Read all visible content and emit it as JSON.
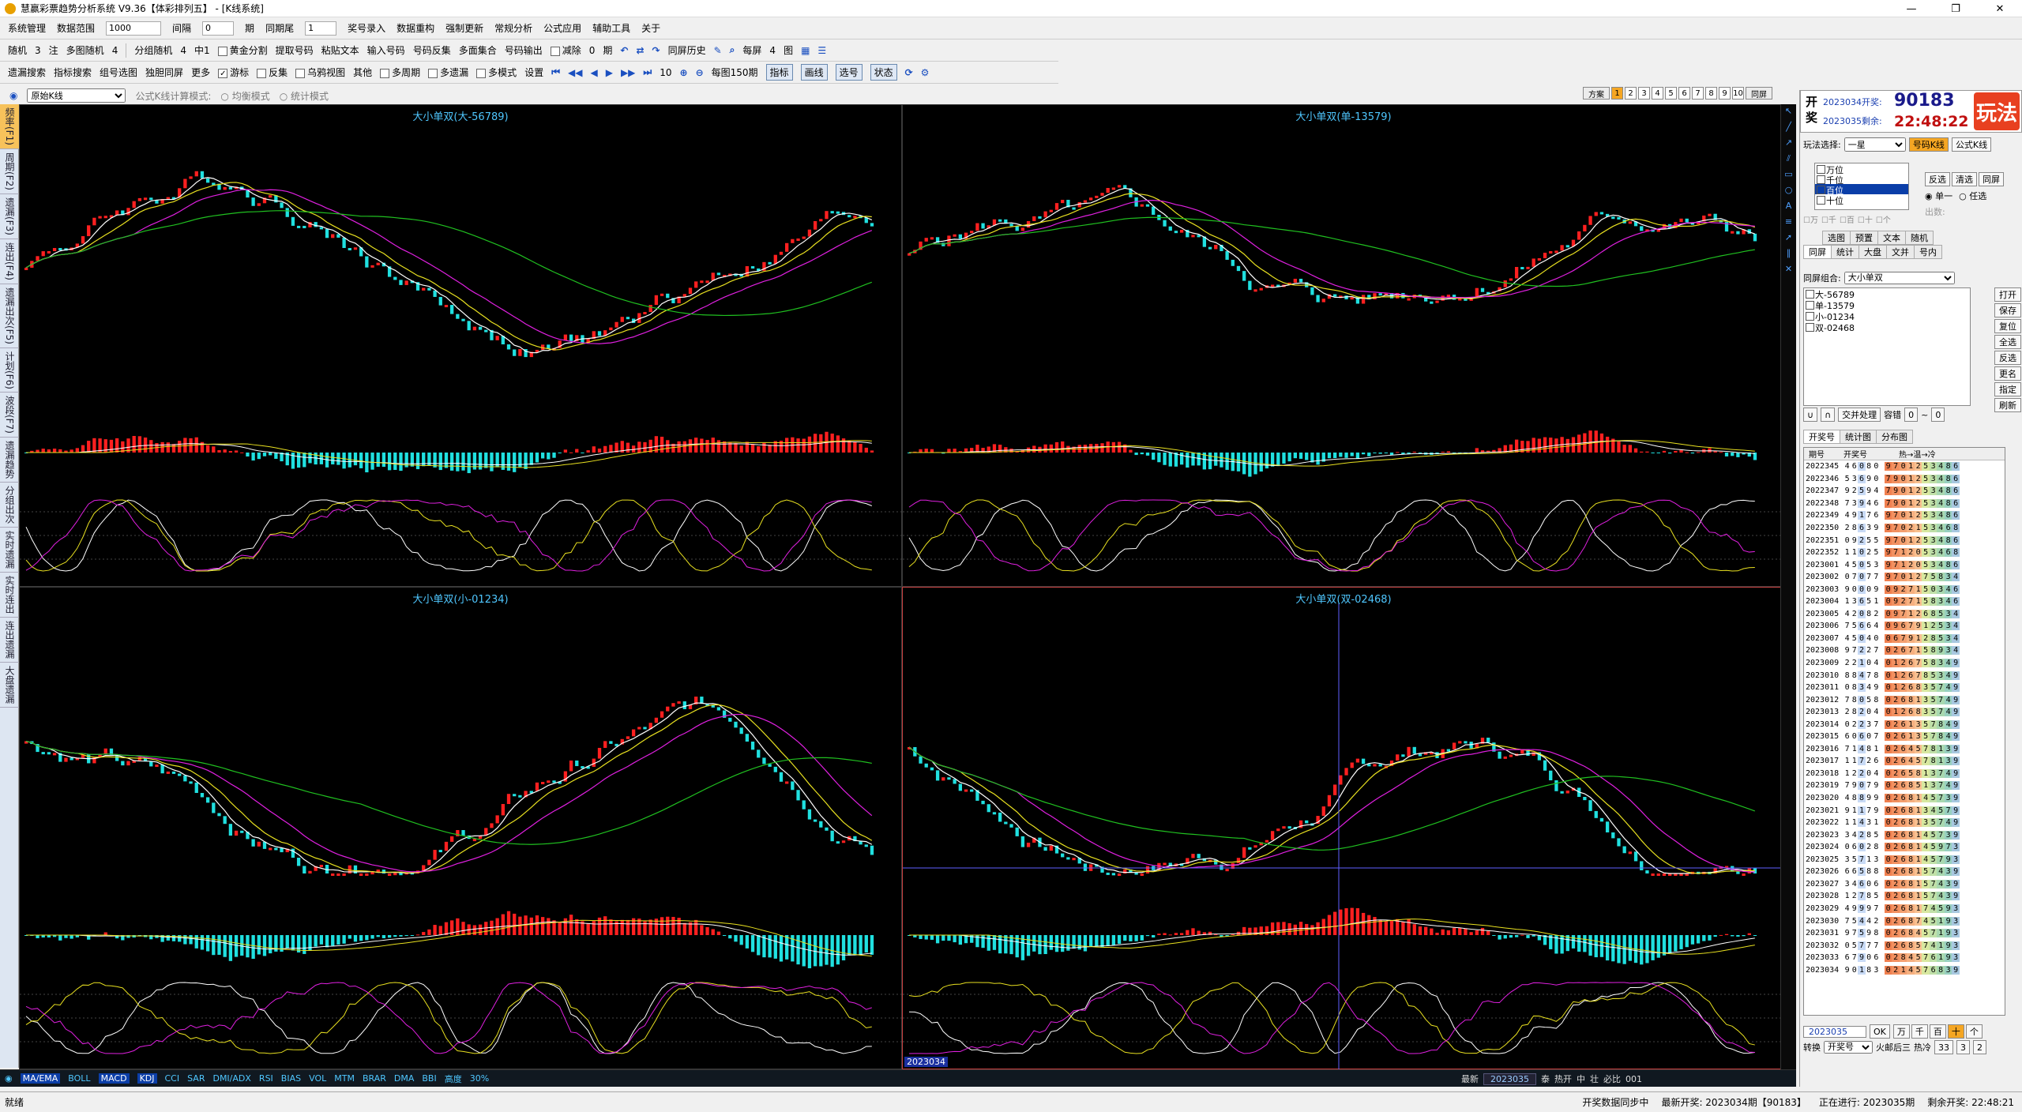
{
  "window": {
    "title": "慧赢彩票趋势分析系统 V9.36【体彩排列五】 - [K线系统]",
    "controls": [
      "—",
      "❐",
      "✕"
    ]
  },
  "menubar": {
    "items": [
      "系统管理",
      "数据范围",
      "期",
      "同期尾",
      "奖号录入",
      "数据重构",
      "强制更新",
      "常规分析",
      "公式应用",
      "辅助工具",
      "关于"
    ],
    "data_range": "1000",
    "jiange_label": "间隔",
    "jiange": "0",
    "same_tail": "1"
  },
  "toolbar1": {
    "items": [
      "随机",
      "3",
      "注",
      "多图随机",
      "4",
      "黄金分割",
      "提取号码",
      "粘贴文本",
      "输入号码",
      "号码反集",
      "多面集合",
      "号码输出",
      "减除",
      "0",
      "期",
      "同屏历史",
      "每屏",
      "4",
      "图"
    ],
    "fenzu": "分组随机",
    "fenzu_val": "4",
    "zhong": "中1"
  },
  "toolbar2": {
    "items": [
      "遗漏搜索",
      "指标搜索",
      "组号选图",
      "独胆同屏",
      "更多",
      "游标",
      "反集",
      "乌鸦视图",
      "其他",
      "多周期",
      "多遗漏",
      "多模式",
      "设置"
    ],
    "per_screen": "10",
    "per_screen_label": "每图150期",
    "tools": [
      "指标",
      "画线",
      "选号",
      "状态"
    ]
  },
  "subbar": {
    "view_mode": "原始K线",
    "calc_label": "公式K线计算模式:",
    "mode1": "均衡模式",
    "mode2": "统计模式",
    "scheme_label": "方案",
    "schemes": [
      "1",
      "2",
      "3",
      "4",
      "5",
      "6",
      "7",
      "8",
      "9",
      "10"
    ],
    "same_screen": "同屏"
  },
  "left_tabs": [
    "频率(F1)",
    "周期(F2)",
    "遗漏(F3)",
    "连出(F4)",
    "遗漏出次(F5)",
    "计划(F6)",
    "波段(F7)",
    "遗漏趋势",
    "分组出次",
    "实时遗漏",
    "实时连出",
    "连出遗漏",
    "大盘遗漏"
  ],
  "panes": [
    {
      "title": "大小单双(大-56789)",
      "seed": 1
    },
    {
      "title": "大小单双(单-13579)",
      "seed": 2
    },
    {
      "title": "大小单双(小-01234)",
      "seed": 3
    },
    {
      "title": "大小单双(双-02468)",
      "seed": 4
    }
  ],
  "cursor_label": "2023034",
  "bottom_indicators": [
    "MA/EMA",
    "BOLL",
    "MACD",
    "KDJ",
    "CCI",
    "SAR",
    "DMI/ADX",
    "RSI",
    "BIAS",
    "VOL",
    "MTM",
    "BRAR",
    "DMA",
    "BBI",
    "高度",
    "30%"
  ],
  "bottom_right": {
    "latest_label": "最新",
    "issue": "2023035",
    "tai": "泰",
    "hot": "热开",
    "mid": "中",
    "zhuang": "壮",
    "bianliao": "必比",
    "val": "001"
  },
  "status": {
    "left": "就绪",
    "sync": "开奖数据同步中",
    "latest": "最新开奖: 2023034期【90183】",
    "current": "正在进行: 2023035期",
    "remain": "剩余开奖: 22:48:21"
  },
  "right_panel": {
    "kai": "开",
    "jiang": "奖",
    "open_issue": "2023034开奖:",
    "open_num": "90183",
    "remain_issue": "2023035剩余:",
    "remain_time": "22:48:22",
    "play_btn": "玩法",
    "play_label": "玩法选择:",
    "play_val": "一星",
    "btn_haoma": "号码K线",
    "btn_gongshi": "公式K线",
    "positions": [
      "万位",
      "千位",
      "百位",
      "十位"
    ],
    "btns": [
      "反选",
      "清选",
      "同屏"
    ],
    "dan": "单一",
    "renxuan": "任选",
    "small": [
      "万",
      "千",
      "百",
      "十",
      "个"
    ],
    "chu": "出数:",
    "tabs_row1": [
      "选图",
      "预置",
      "文本",
      "随机"
    ],
    "tabs_row2": [
      "同屏",
      "统计",
      "大盘",
      "文并",
      "号内"
    ],
    "combo_label": "同屏组合:",
    "combo_val": "大小单双",
    "combo_items": [
      "大-56789",
      "单-13579",
      "小-01234",
      "双-02468"
    ],
    "side_btns": [
      "打开",
      "保存",
      "复位",
      "全选",
      "反选",
      "更名",
      "指定",
      "刷新"
    ],
    "ops": [
      "∪",
      "∩",
      "交并处理",
      "容错",
      "0",
      "~",
      "0"
    ],
    "hist_tabs": [
      "开奖号",
      "统计图",
      "分布图"
    ],
    "hist_head": [
      "期号",
      "开奖号",
      "热→温→冷"
    ],
    "history": [
      [
        "2022345",
        "46080",
        "9701253486"
      ],
      [
        "2022346",
        "53690",
        "7901253486"
      ],
      [
        "2022347",
        "92594",
        "7901253486"
      ],
      [
        "2022348",
        "73946",
        "7901253486"
      ],
      [
        "2022349",
        "49176",
        "9701253486"
      ],
      [
        "2022350",
        "28639",
        "9702153468"
      ],
      [
        "2022351",
        "09255",
        "9701253486"
      ],
      [
        "2022352",
        "11025",
        "9712053468"
      ],
      [
        "2023001",
        "45053",
        "9712053486"
      ],
      [
        "2023002",
        "07077",
        "9701275834"
      ],
      [
        "2023003",
        "90009",
        "0927150346"
      ],
      [
        "2023004",
        "13651",
        "0927158346"
      ],
      [
        "2023005",
        "42082",
        "0971268534"
      ],
      [
        "2023006",
        "75664",
        "0967912534"
      ],
      [
        "2023007",
        "45040",
        "0679128534"
      ],
      [
        "2023008",
        "97227",
        "0267158934"
      ],
      [
        "2023009",
        "22104",
        "0126758349"
      ],
      [
        "2023010",
        "88478",
        "0126785349"
      ],
      [
        "2023011",
        "08349",
        "0126835749"
      ],
      [
        "2023012",
        "78058",
        "0268135749"
      ],
      [
        "2023013",
        "28204",
        "0126835749"
      ],
      [
        "2023014",
        "02237",
        "0261357849"
      ],
      [
        "2023015",
        "60607",
        "0261357849"
      ],
      [
        "2023016",
        "71481",
        "0264578139"
      ],
      [
        "2023017",
        "11726",
        "0264578139"
      ],
      [
        "2023018",
        "12204",
        "0265813749"
      ],
      [
        "2023019",
        "79079",
        "0268513749"
      ],
      [
        "2023020",
        "48899",
        "0268145739"
      ],
      [
        "2023021",
        "91179",
        "0268134579"
      ],
      [
        "2023022",
        "11431",
        "0268135749"
      ],
      [
        "2023023",
        "34285",
        "0268145739"
      ],
      [
        "2023024",
        "06028",
        "0268145973"
      ],
      [
        "2023025",
        "35713",
        "0268145793"
      ],
      [
        "2023026",
        "66588",
        "0268157439"
      ],
      [
        "2023027",
        "34606",
        "0268157439"
      ],
      [
        "2023028",
        "12785",
        "0268157439"
      ],
      [
        "2023029",
        "49997",
        "0268174593"
      ],
      [
        "2023030",
        "75442",
        "0268745193"
      ],
      [
        "2023031",
        "97598",
        "0268457193"
      ],
      [
        "2023032",
        "05777",
        "0268574193"
      ],
      [
        "2023033",
        "67906",
        "0284576193"
      ],
      [
        "2023034",
        "90183",
        "0214576839"
      ]
    ],
    "next_issue": "2023035",
    "ok": "OK",
    "pos_btns": [
      "万",
      "千",
      "百",
      "十",
      "个"
    ],
    "convert_label": "转换",
    "convert_val": "开奖号",
    "after_label": "火邮后三",
    "hot_label": "热冷",
    "hot_vals": [
      "33",
      "3",
      "2"
    ]
  }
}
